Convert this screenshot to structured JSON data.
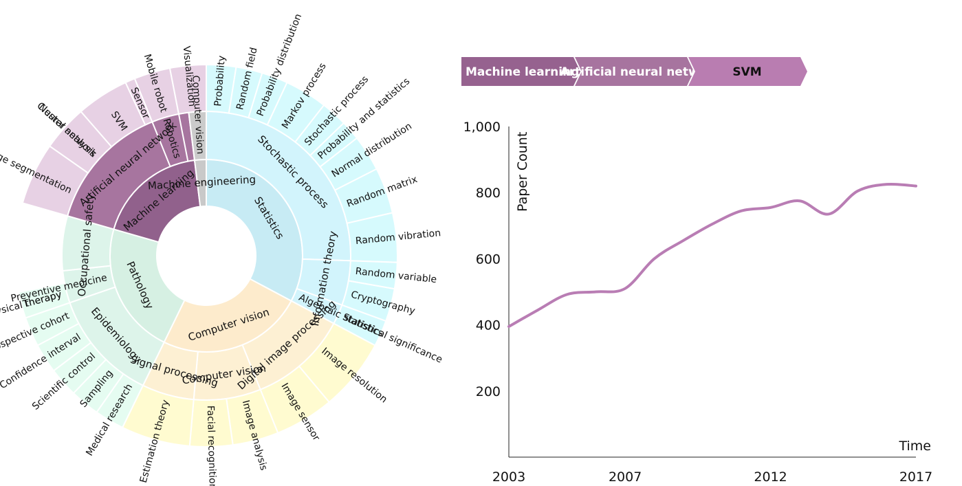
{
  "breadcrumb": {
    "items": [
      {
        "label": "Machine learning",
        "color": "#96628f"
      },
      {
        "label": "Artificial neural netwo",
        "color": "#a7749f"
      },
      {
        "label": "SVM",
        "color": "#b97db1"
      }
    ]
  },
  "chart_data": [
    {
      "type": "sunburst",
      "colors": {
        "Statistics": {
          "inner": "#c7ebf4",
          "mid": "#d2f4fc",
          "outer": "#d6fafd"
        },
        "Computer vision": {
          "inner": "#fdebcc",
          "mid": "#fdf0d3",
          "outer": "#fffbd0"
        },
        "Pathology": {
          "inner": "#d6f0e3",
          "mid": "#ddf4ea",
          "outer": "#e5fcf1"
        },
        "Machine learning": {
          "inner": "#91618c",
          "mid": "#a7759f",
          "outer": "#e7d1e4"
        },
        "Machine engineering": {
          "inner": "#c9c9c9",
          "mid": "#cbcbcb",
          "outer": "#cbcbcb"
        }
      },
      "nodes": [
        {
          "name": "Statistics",
          "depth": 1,
          "start": 0,
          "end": 118
        },
        {
          "name": "Stochastic process",
          "depth": 2,
          "start": 0,
          "end": 92
        },
        {
          "name": "Information theory",
          "depth": 2,
          "start": 92,
          "end": 110
        },
        {
          "name": "Algebraic statistics",
          "depth": 2,
          "start": 110,
          "end": 118
        },
        {
          "name": "Probability",
          "depth": 3,
          "start": 0,
          "end": 9
        },
        {
          "name": "Random field",
          "depth": 3,
          "start": 9,
          "end": 17
        },
        {
          "name": "Probability distribution",
          "depth": 3,
          "start": 17,
          "end": 25
        },
        {
          "name": "Markov process",
          "depth": 3,
          "start": 25,
          "end": 38
        },
        {
          "name": "Stochastic process",
          "depth": 3,
          "start": 38,
          "end": 46
        },
        {
          "name": "Probability and statistics",
          "depth": 3,
          "start": 46,
          "end": 52
        },
        {
          "name": "Normal distribution",
          "depth": 3,
          "start": 52,
          "end": 63
        },
        {
          "name": "Random matrix",
          "depth": 3,
          "start": 63,
          "end": 77
        },
        {
          "name": "Random vibration",
          "depth": 3,
          "start": 77,
          "end": 92
        },
        {
          "name": "Random variable",
          "depth": 3,
          "start": 92,
          "end": 100
        },
        {
          "name": "Cryptography",
          "depth": 3,
          "start": 100,
          "end": 110
        },
        {
          "name": "Statistical significance",
          "depth": 3,
          "start": 110,
          "end": 118
        },
        {
          "name": "Computer vision",
          "depth": 1,
          "start": 118,
          "end": 206
        },
        {
          "name": "Digital image processing",
          "depth": 2,
          "start": 118,
          "end": 158
        },
        {
          "name": "Computer vision",
          "depth": 2,
          "start": 158,
          "end": 185
        },
        {
          "name": "Signal processing",
          "depth": 2,
          "start": 185,
          "end": 206
        },
        {
          "name": "Image resolution",
          "depth": 3,
          "start": 118,
          "end": 140
        },
        {
          "name": "Image sensor",
          "depth": 3,
          "start": 140,
          "end": 158
        },
        {
          "name": "Image analysis",
          "depth": 3,
          "start": 158,
          "end": 172
        },
        {
          "name": "Facial recognition",
          "depth": 3,
          "start": 172,
          "end": 185
        },
        {
          "name": "Estimation theory",
          "depth": 3,
          "start": 185,
          "end": 206
        },
        {
          "name": "Pathology",
          "depth": 1,
          "start": 206,
          "end": 286
        },
        {
          "name": "Epidemiology",
          "depth": 2,
          "start": 206,
          "end": 251
        },
        {
          "name": "Preventive medicine",
          "depth": 2,
          "start": 251,
          "end": 264
        },
        {
          "name": "Occupational safety",
          "depth": 2,
          "start": 264,
          "end": 286
        },
        {
          "name": "Medical research",
          "depth": 3,
          "start": 206,
          "end": 215
        },
        {
          "name": "Sampling",
          "depth": 3,
          "start": 215,
          "end": 224
        },
        {
          "name": "Scientific control",
          "depth": 3,
          "start": 224,
          "end": 233
        },
        {
          "name": "Confidence interval",
          "depth": 3,
          "start": 233,
          "end": 242
        },
        {
          "name": "Prospective cohort",
          "depth": 3,
          "start": 242,
          "end": 251
        },
        {
          "name": "Therapy",
          "depth": 3,
          "start": 251,
          "end": 259
        },
        {
          "name": "Physical therapy",
          "depth": 3,
          "start": 251,
          "end": 259
        },
        {
          "name": "Machine learning",
          "depth": 1,
          "start": 286,
          "end": 353
        },
        {
          "name": "Artificial neural network",
          "depth": 2,
          "start": 286,
          "end": 353
        },
        {
          "name": "Image segmentation",
          "depth": 3,
          "start": 286,
          "end": 305
        },
        {
          "name": "Cluster analysis",
          "depth": 3,
          "start": 305,
          "end": 319
        },
        {
          "name": "Neural network",
          "depth": 3,
          "start": 305,
          "end": 319
        },
        {
          "name": "SVM",
          "depth": 3,
          "start": 319,
          "end": 335
        },
        {
          "name": "Sensor",
          "depth": 3,
          "start": 335,
          "end": 338
        },
        {
          "name": "Machine engineering",
          "depth": 1,
          "start": 353,
          "end": 360
        },
        {
          "name": "Robotics",
          "depth": 2,
          "start": 338,
          "end": 349
        },
        {
          "name": "Computer vision",
          "depth": 2,
          "start": 353,
          "end": 360
        },
        {
          "name": "Mobile robot",
          "depth": 3,
          "start": 338,
          "end": 349
        },
        {
          "name": "Visualization",
          "depth": 3,
          "start": 349,
          "end": 360
        }
      ]
    },
    {
      "type": "line",
      "x": [
        2003,
        2004,
        2005,
        2006,
        2007,
        2008,
        2009,
        2010,
        2011,
        2012,
        2013,
        2014,
        2015,
        2016,
        2017
      ],
      "y": [
        395,
        445,
        492,
        500,
        510,
        600,
        655,
        705,
        745,
        755,
        775,
        735,
        805,
        825,
        820
      ],
      "xticks": [
        "2003",
        "2007",
        "2012",
        "2017"
      ],
      "yticks": [
        "1,000",
        "800",
        "600",
        "400",
        "200"
      ],
      "xlim": [
        2003,
        2017
      ],
      "ylim": [
        0,
        1000
      ],
      "xlabel": "Time",
      "ylabel": "Paper Count",
      "line_color": "#b97db4",
      "grid": false
    }
  ]
}
